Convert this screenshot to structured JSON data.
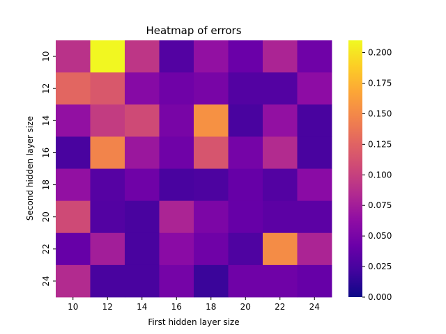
{
  "chart_data": {
    "type": "heatmap",
    "title": "Heatmap of errors",
    "xlabel": "First hidden layer size",
    "ylabel": "Second hidden layer size",
    "x": [
      "10",
      "12",
      "14",
      "16",
      "18",
      "20",
      "22",
      "24"
    ],
    "y": [
      "10",
      "12",
      "14",
      "16",
      "18",
      "20",
      "22",
      "24"
    ],
    "values": [
      [
        0.09,
        0.209,
        0.093,
        0.03,
        0.065,
        0.042,
        0.08,
        0.045
      ],
      [
        0.127,
        0.117,
        0.058,
        0.045,
        0.05,
        0.03,
        0.03,
        0.062
      ],
      [
        0.065,
        0.097,
        0.107,
        0.05,
        0.155,
        0.025,
        0.065,
        0.025
      ],
      [
        0.025,
        0.147,
        0.07,
        0.045,
        0.115,
        0.048,
        0.085,
        0.025
      ],
      [
        0.065,
        0.032,
        0.045,
        0.025,
        0.027,
        0.04,
        0.03,
        0.06
      ],
      [
        0.107,
        0.03,
        0.025,
        0.08,
        0.052,
        0.04,
        0.035,
        0.035
      ],
      [
        0.04,
        0.075,
        0.025,
        0.06,
        0.045,
        0.028,
        0.152,
        0.08
      ],
      [
        0.085,
        0.025,
        0.025,
        0.048,
        0.018,
        0.045,
        0.045,
        0.04
      ]
    ],
    "colormap": "plasma",
    "vmin": 0.0,
    "vmax": 0.21,
    "colorbar_ticks": [
      "0.000",
      "0.025",
      "0.050",
      "0.075",
      "0.100",
      "0.125",
      "0.150",
      "0.175",
      "0.200"
    ],
    "grid": false,
    "legend": "colorbar-right"
  }
}
